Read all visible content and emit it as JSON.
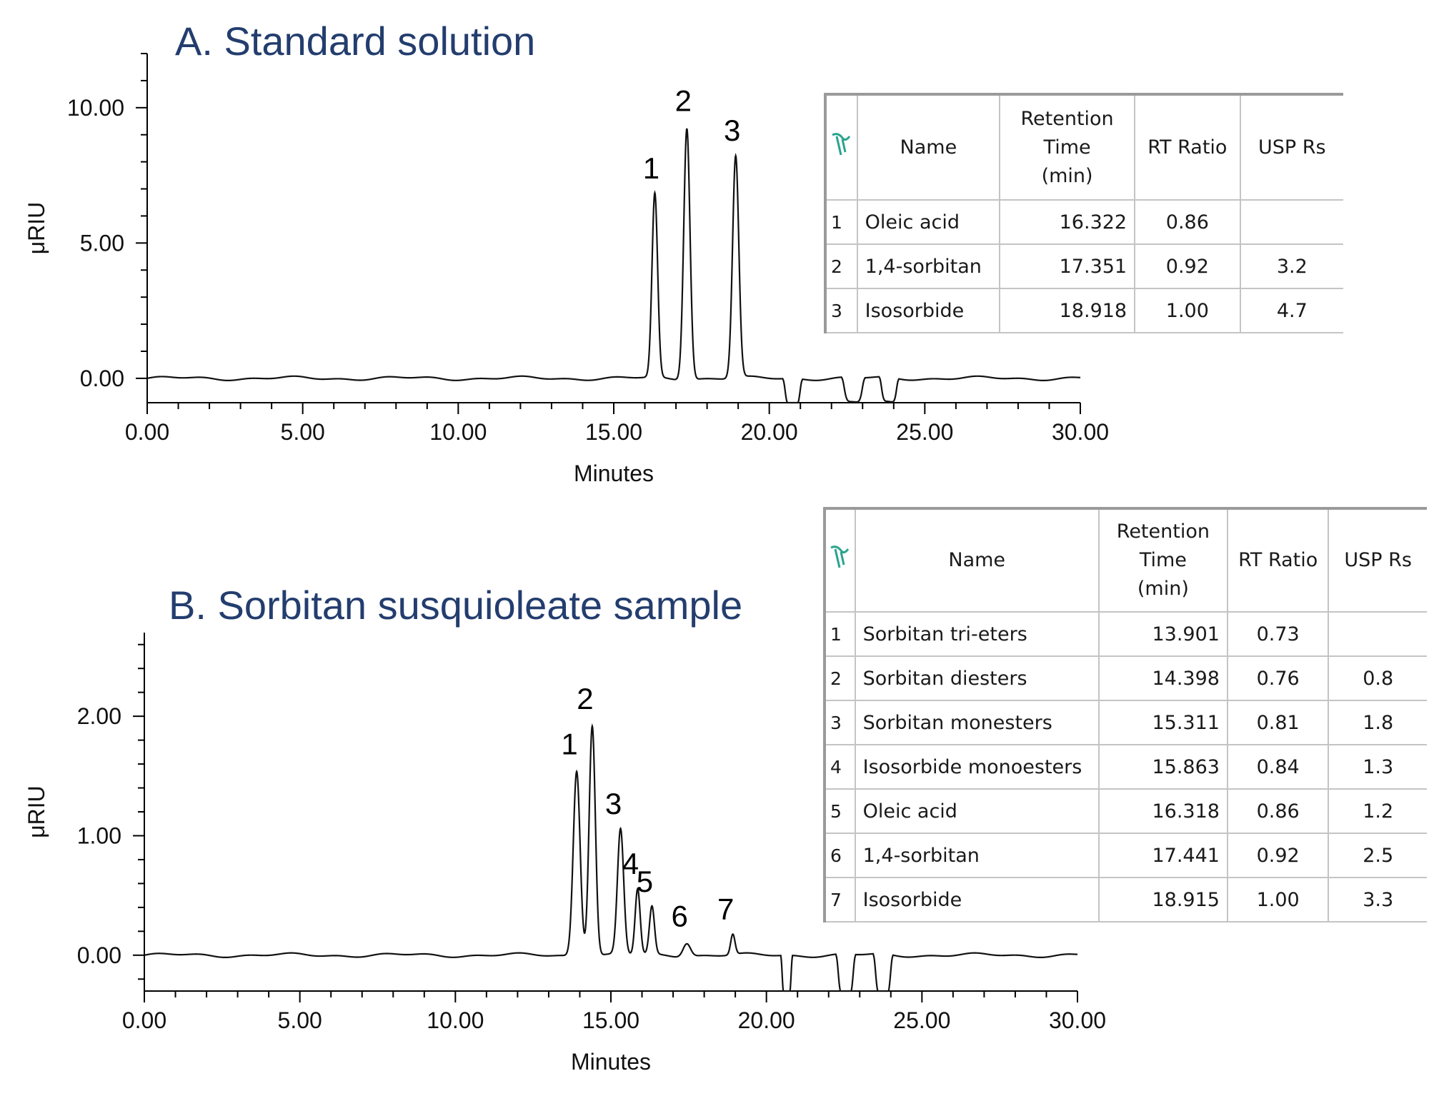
{
  "chart_data": [
    {
      "type": "line",
      "title": "A. Standard solution",
      "xlabel": "Minutes",
      "ylabel": "μRIU",
      "xlim": [
        0,
        30
      ],
      "ylim": [
        -0.9,
        12
      ],
      "x_ticks": [
        "0.00",
        "5.00",
        "10.00",
        "15.00",
        "20.00",
        "25.00",
        "30.00"
      ],
      "y_ticks": [
        "0.00",
        "5.00",
        "10.00"
      ],
      "x_tick_values": [
        0,
        5,
        10,
        15,
        20,
        25,
        30
      ],
      "y_tick_values": [
        0,
        5,
        10
      ],
      "grid": false,
      "series": [
        {
          "peaks": [
            {
              "label": "1",
              "x": 16.32,
              "height": 6.8,
              "width": 0.09
            },
            {
              "label": "2",
              "x": 17.35,
              "height": 9.3,
              "width": 0.1
            },
            {
              "label": "3",
              "x": 18.92,
              "height": 8.2,
              "width": 0.1
            }
          ],
          "dips": [
            {
              "from": 20.5,
              "to": 21.0,
              "depth": -1.0
            },
            {
              "from": 22.4,
              "to": 23.0,
              "depth": -0.9
            },
            {
              "from": 23.6,
              "to": 24.1,
              "depth": -0.9
            }
          ]
        }
      ],
      "table": {
        "headers": [
          "Name",
          "Retention Time (min)",
          "RT Ratio",
          "USP Rs"
        ],
        "header_lines": {
          "rt": [
            "Retention",
            "Time",
            "(min)"
          ]
        },
        "rows": [
          {
            "idx": "1",
            "name": "Oleic acid",
            "rt": "16.322",
            "ratio": "0.86",
            "rs": ""
          },
          {
            "idx": "2",
            "name": "1,4-sorbitan",
            "rt": "17.351",
            "ratio": "0.92",
            "rs": "3.2"
          },
          {
            "idx": "3",
            "name": "Isosorbide",
            "rt": "18.918",
            "ratio": "1.00",
            "rs": "4.7"
          }
        ]
      }
    },
    {
      "type": "line",
      "title": "B. Sorbitan susquioleate sample",
      "xlabel": "Minutes",
      "ylabel": "μRIU",
      "xlim": [
        0,
        30
      ],
      "ylim": [
        -0.3,
        2.7
      ],
      "x_ticks": [
        "0.00",
        "5.00",
        "10.00",
        "15.00",
        "20.00",
        "25.00",
        "30.00"
      ],
      "y_ticks": [
        "0.00",
        "1.00",
        "2.00"
      ],
      "x_tick_values": [
        0,
        5,
        10,
        15,
        20,
        25,
        30
      ],
      "y_tick_values": [
        0,
        1,
        2
      ],
      "grid": false,
      "series": [
        {
          "peaks": [
            {
              "label": "1",
              "x": 13.9,
              "height": 1.55,
              "width": 0.11
            },
            {
              "label": "2",
              "x": 14.4,
              "height": 1.93,
              "width": 0.1
            },
            {
              "label": "3",
              "x": 15.31,
              "height": 1.05,
              "width": 0.1
            },
            {
              "label": "4",
              "x": 15.86,
              "height": 0.55,
              "width": 0.08
            },
            {
              "label": "5",
              "x": 16.32,
              "height": 0.4,
              "width": 0.08
            },
            {
              "label": "6",
              "x": 17.44,
              "height": 0.11,
              "width": 0.12
            },
            {
              "label": "7",
              "x": 18.92,
              "height": 0.17,
              "width": 0.07
            }
          ],
          "dips": [
            {
              "from": 20.5,
              "to": 20.8,
              "depth": -0.35
            },
            {
              "from": 22.3,
              "to": 22.8,
              "depth": -0.35
            },
            {
              "from": 23.5,
              "to": 24.0,
              "depth": -0.35
            }
          ]
        }
      ],
      "table": {
        "headers": [
          "Name",
          "Retention Time (min)",
          "RT Ratio",
          "USP Rs"
        ],
        "header_lines": {
          "rt": [
            "Retention",
            "Time",
            "(min)"
          ]
        },
        "rows": [
          {
            "idx": "1",
            "name": "Sorbitan tri-eters",
            "rt": "13.901",
            "ratio": "0.73",
            "rs": ""
          },
          {
            "idx": "2",
            "name": "Sorbitan diesters",
            "rt": "14.398",
            "ratio": "0.76",
            "rs": "0.8"
          },
          {
            "idx": "3",
            "name": "Sorbitan monesters",
            "rt": "15.311",
            "ratio": "0.81",
            "rs": "1.8"
          },
          {
            "idx": "4",
            "name": "Isosorbide monoesters",
            "rt": "15.863",
            "ratio": "0.84",
            "rs": "1.3"
          },
          {
            "idx": "5",
            "name": "Oleic acid",
            "rt": "16.318",
            "ratio": "0.86",
            "rs": "1.2"
          },
          {
            "idx": "6",
            "name": "1,4-sorbitan",
            "rt": "17.441",
            "ratio": "0.92",
            "rs": "2.5"
          },
          {
            "idx": "7",
            "name": "Isosorbide",
            "rt": "18.915",
            "ratio": "1.00",
            "rs": "3.3"
          }
        ]
      }
    }
  ],
  "colors": {
    "title": "#233d6e",
    "trace": "#111111",
    "icon": "#2aa38e"
  },
  "icons": {
    "table_corner": "peak-integration-icon"
  }
}
